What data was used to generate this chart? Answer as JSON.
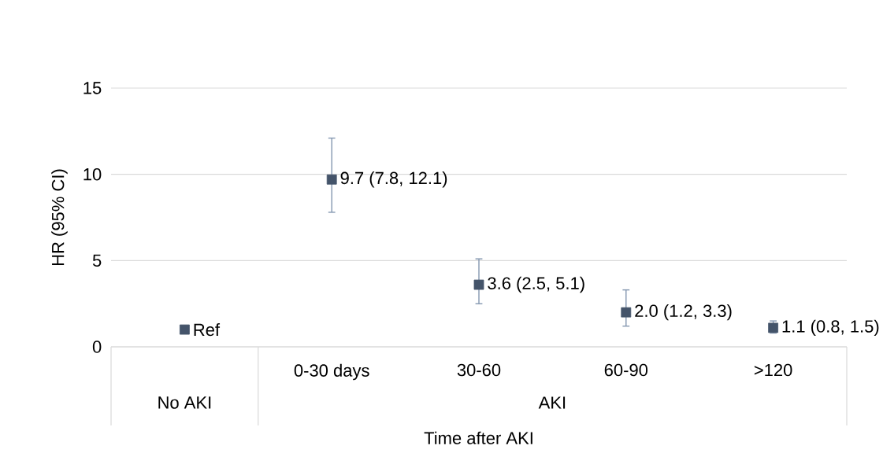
{
  "chart_data": {
    "type": "scatter",
    "ylabel": "HR (95% CI)",
    "xlabel": "Time after AKI",
    "categories": [
      null,
      "0-30 days",
      "30-60",
      "60-90",
      ">120"
    ],
    "annotations": [
      "No AKI",
      "AKI"
    ],
    "values": [
      1,
      9.7,
      3.6,
      2.0,
      1.1
    ],
    "errors": [
      null,
      [
        7.8,
        12.1
      ],
      [
        2.5,
        5.1
      ],
      [
        1.2,
        3.3
      ],
      [
        0.8,
        1.5
      ]
    ],
    "value_labels": [
      "Ref",
      "9.7 (7.8, 12.1)",
      "3.6 (2.5, 5.1)",
      "2.0 (1.2, 3.3)",
      "1.1 (0.8, 1.5)"
    ],
    "color": "#44546a",
    "ylim": [
      0,
      15
    ],
    "yticks": [
      0,
      5,
      10,
      15
    ],
    "grid": "y",
    "marker": "square"
  }
}
